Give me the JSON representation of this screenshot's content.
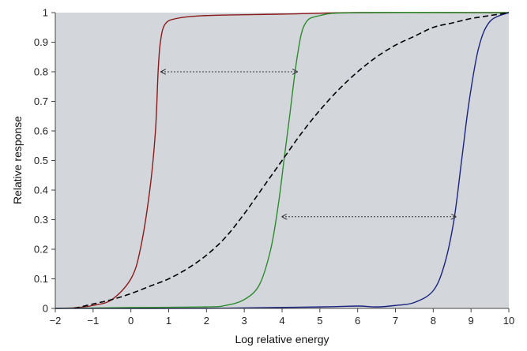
{
  "chart_data": {
    "type": "line",
    "title": "",
    "xlabel": "Log relative energy",
    "ylabel": "Relative response",
    "xlim": [
      -2,
      10
    ],
    "ylim": [
      0,
      1
    ],
    "x_ticks": [
      -2,
      -1,
      0,
      1,
      2,
      3,
      4,
      5,
      6,
      7,
      8,
      9,
      10
    ],
    "x_tick_labels": [
      "−2",
      "−1",
      "0",
      "1",
      "2",
      "3",
      "4",
      "5",
      "6",
      "7",
      "8",
      "9",
      "10"
    ],
    "y_ticks": [
      0,
      0.1,
      0.2,
      0.3,
      0.4,
      0.5,
      0.6,
      0.7,
      0.8,
      0.9,
      1
    ],
    "y_tick_labels": [
      "0",
      "0.1",
      "0.2",
      "0.3",
      "0.4",
      "0.5",
      "0.6",
      "0.7",
      "0.8",
      "0.9",
      "1"
    ],
    "grid": false,
    "background": "#d3d7dc",
    "series": [
      {
        "color": "#8b1a1a",
        "style": "solid",
        "points": [
          [
            -2,
            0
          ],
          [
            -1.5,
            0.002
          ],
          [
            -1,
            0.01
          ],
          [
            -0.5,
            0.03
          ],
          [
            0,
            0.1
          ],
          [
            0.25,
            0.2
          ],
          [
            0.5,
            0.4
          ],
          [
            0.65,
            0.6
          ],
          [
            0.72,
            0.8
          ],
          [
            0.78,
            0.9
          ],
          [
            0.9,
            0.96
          ],
          [
            1.2,
            0.98
          ],
          [
            2,
            0.99
          ],
          [
            4,
            0.995
          ],
          [
            6,
            1
          ],
          [
            10,
            1
          ]
        ]
      },
      {
        "color": "#2e8b2e",
        "style": "solid",
        "points": [
          [
            -2,
            0
          ],
          [
            0,
            0.003
          ],
          [
            2,
            0.005
          ],
          [
            2.5,
            0.01
          ],
          [
            3,
            0.03
          ],
          [
            3.4,
            0.08
          ],
          [
            3.7,
            0.2
          ],
          [
            3.9,
            0.35
          ],
          [
            4.05,
            0.5
          ],
          [
            4.2,
            0.65
          ],
          [
            4.4,
            0.85
          ],
          [
            4.6,
            0.96
          ],
          [
            5,
            0.99
          ],
          [
            6,
            1
          ],
          [
            10,
            1
          ]
        ]
      },
      {
        "color": "#1a237e",
        "style": "solid",
        "points": [
          [
            -2,
            0
          ],
          [
            2,
            0
          ],
          [
            5,
            0.005
          ],
          [
            6,
            0.008
          ],
          [
            6.5,
            0.005
          ],
          [
            7,
            0.01
          ],
          [
            7.5,
            0.02
          ],
          [
            8,
            0.06
          ],
          [
            8.3,
            0.15
          ],
          [
            8.55,
            0.3
          ],
          [
            8.75,
            0.5
          ],
          [
            8.95,
            0.7
          ],
          [
            9.2,
            0.88
          ],
          [
            9.5,
            0.97
          ],
          [
            10,
            1
          ]
        ]
      },
      {
        "color": "#000000",
        "style": "dashed",
        "points": [
          [
            -1.5,
            0
          ],
          [
            -1,
            0.015
          ],
          [
            -0.5,
            0.03
          ],
          [
            0,
            0.05
          ],
          [
            0.5,
            0.075
          ],
          [
            1,
            0.1
          ],
          [
            1.5,
            0.135
          ],
          [
            2,
            0.18
          ],
          [
            2.5,
            0.24
          ],
          [
            3,
            0.32
          ],
          [
            3.5,
            0.41
          ],
          [
            4,
            0.5
          ],
          [
            4.5,
            0.59
          ],
          [
            5,
            0.67
          ],
          [
            5.5,
            0.74
          ],
          [
            6,
            0.8
          ],
          [
            6.5,
            0.85
          ],
          [
            7,
            0.89
          ],
          [
            7.5,
            0.92
          ],
          [
            8,
            0.95
          ],
          [
            8.5,
            0.965
          ],
          [
            9,
            0.98
          ],
          [
            9.5,
            0.99
          ],
          [
            10,
            1
          ]
        ]
      }
    ],
    "arrows": [
      {
        "x1": 0.8,
        "x2": 4.4,
        "y": 0.8
      },
      {
        "x1": 4.0,
        "x2": 8.6,
        "y": 0.31
      }
    ]
  }
}
